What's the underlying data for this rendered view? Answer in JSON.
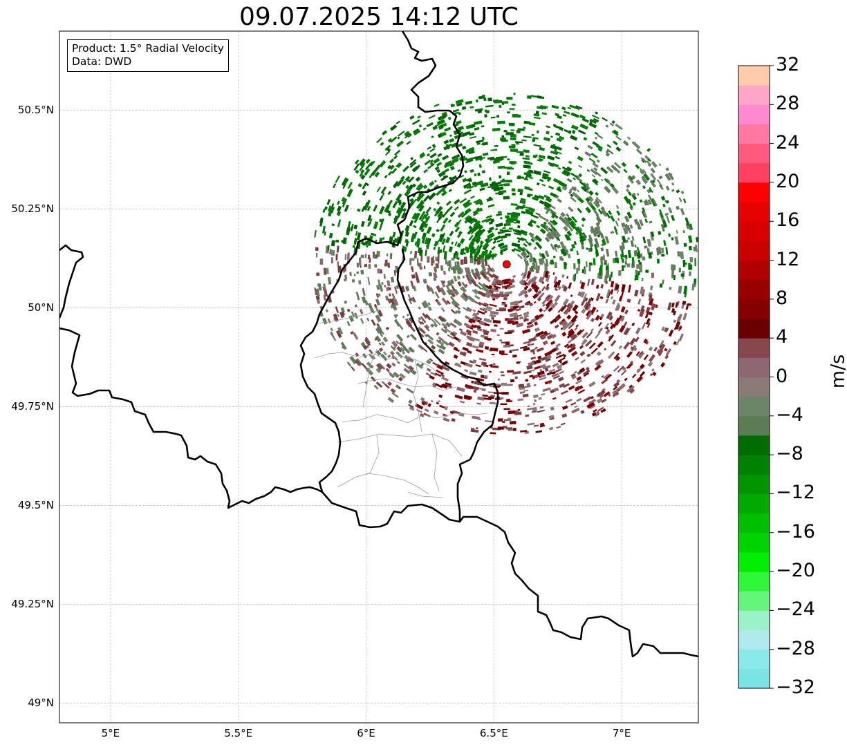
{
  "title": "09.07.2025 14:12 UTC",
  "info_box": {
    "product": "Product: 1.5° Radial Velocity",
    "data": "Data: DWD"
  },
  "map": {
    "lon_range": [
      4.8,
      7.3
    ],
    "lat_range": [
      48.95,
      50.7
    ],
    "lon_ticks": [
      {
        "value": 5.0,
        "label": "5°E"
      },
      {
        "value": 5.5,
        "label": "5.5°E"
      },
      {
        "value": 6.0,
        "label": "6°E"
      },
      {
        "value": 6.5,
        "label": "6.5°E"
      },
      {
        "value": 7.0,
        "label": "7°E"
      }
    ],
    "lat_ticks": [
      {
        "value": 50.5,
        "label": "50.5°N"
      },
      {
        "value": 50.25,
        "label": "50.25°N"
      },
      {
        "value": 50.0,
        "label": "50°N"
      },
      {
        "value": 49.75,
        "label": "49.75°N"
      },
      {
        "value": 49.5,
        "label": "49.5°N"
      },
      {
        "value": 49.25,
        "label": "49.25°N"
      },
      {
        "value": 49.0,
        "label": "49°N"
      }
    ],
    "gridlines": true,
    "radar_site": {
      "lon": 6.55,
      "lat": 50.11,
      "color": "#ff0000"
    },
    "border_color": "#000000",
    "subregion_color": "#999999"
  },
  "colorbar": {
    "unit": "m/s",
    "min": -32,
    "max": 32,
    "tick_values": [
      -32,
      -28,
      -24,
      -20,
      -16,
      -12,
      -8,
      -4,
      0,
      4,
      8,
      12,
      16,
      20,
      24,
      28,
      32
    ],
    "tick_labels": [
      "−32",
      "−28",
      "−24",
      "−20",
      "−16",
      "−12",
      "−8",
      "−4",
      "0",
      "4",
      "8",
      "12",
      "16",
      "20",
      "24",
      "28",
      "32"
    ],
    "colors": [
      "#7ae3e3",
      "#8ae8e8",
      "#aee9ee",
      "#9cf2c8",
      "#66f57a",
      "#2ef73a",
      "#00ee00",
      "#00d400",
      "#00bf00",
      "#00a800",
      "#009400",
      "#008000",
      "#006b00",
      "#5b7c55",
      "#6d8468",
      "#8a7b77",
      "#8d6872",
      "#86474c",
      "#6b0000",
      "#850000",
      "#9a0000",
      "#b00000",
      "#c80000",
      "#d80000",
      "#e60000",
      "#ff0000",
      "#ff4160",
      "#ff5a7e",
      "#ff77a2",
      "#ff88cf",
      "#ffa6c8",
      "#ffccaa"
    ]
  }
}
